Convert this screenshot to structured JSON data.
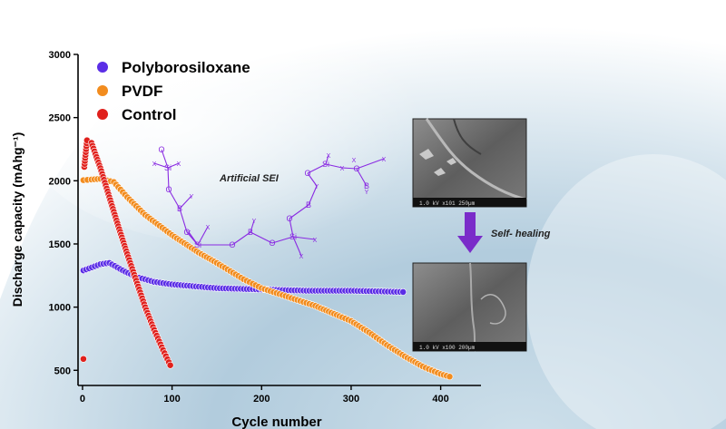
{
  "colors": {
    "polyborosiloxane": "#5b2ee6",
    "pvdf": "#f28c1e",
    "control": "#e0201c",
    "chem": "#8a2be2",
    "arrow": "#7a2cc9"
  },
  "labels": {
    "artificial_sei": "Artificial SEI",
    "self_healing": "Self- healing",
    "sem_top_footer": "1.0 kV  x101  250µm",
    "sem_bottom_footer": "1.0 kV  x100  200µm"
  },
  "chem_atoms": [
    "O",
    "Si",
    "X",
    "X",
    "O",
    "B",
    "Y",
    "O",
    "Si",
    "X",
    "X",
    "O",
    "B",
    "Y",
    "O",
    "Si",
    "X",
    "X",
    "O",
    "B",
    "Y",
    "O",
    "Si",
    "X",
    "X",
    "O",
    "B",
    "Y",
    "X",
    "X"
  ],
  "chart_data": {
    "type": "scatter",
    "title": "",
    "xlabel": "Cycle number",
    "ylabel": "Discharge capacity (mAhg⁻¹)",
    "xlim": [
      -5,
      445
    ],
    "ylim": [
      380,
      3000
    ],
    "xticks": [
      0,
      100,
      200,
      300,
      400
    ],
    "yticks": [
      500,
      1000,
      1500,
      2000,
      2500,
      3000
    ],
    "legend_position": "top-left",
    "series": [
      {
        "name": "Polyborosiloxane",
        "key": "polyborosiloxane",
        "points": [
          [
            1,
            1290
          ],
          [
            20,
            1340
          ],
          [
            30,
            1350
          ],
          [
            45,
            1290
          ],
          [
            60,
            1240
          ],
          [
            80,
            1200
          ],
          [
            100,
            1180
          ],
          [
            150,
            1150
          ],
          [
            200,
            1140
          ],
          [
            250,
            1130
          ],
          [
            300,
            1130
          ],
          [
            358,
            1120
          ]
        ]
      },
      {
        "name": "PVDF",
        "key": "pvdf",
        "points": [
          [
            1,
            2005
          ],
          [
            10,
            2010
          ],
          [
            20,
            2015
          ],
          [
            35,
            1990
          ],
          [
            50,
            1870
          ],
          [
            70,
            1730
          ],
          [
            100,
            1570
          ],
          [
            130,
            1430
          ],
          [
            150,
            1350
          ],
          [
            180,
            1220
          ],
          [
            200,
            1150
          ],
          [
            230,
            1080
          ],
          [
            260,
            1010
          ],
          [
            290,
            920
          ],
          [
            300,
            890
          ],
          [
            320,
            800
          ],
          [
            340,
            700
          ],
          [
            360,
            610
          ],
          [
            380,
            530
          ],
          [
            400,
            470
          ],
          [
            410,
            450
          ]
        ]
      },
      {
        "name": "Control",
        "key": "control",
        "points": [
          [
            1,
            590
          ],
          [
            2,
            2110
          ],
          [
            5,
            2320
          ],
          [
            10,
            2300
          ],
          [
            20,
            2100
          ],
          [
            30,
            1870
          ],
          [
            40,
            1640
          ],
          [
            50,
            1420
          ],
          [
            60,
            1210
          ],
          [
            70,
            1000
          ],
          [
            80,
            820
          ],
          [
            90,
            660
          ],
          [
            98,
            540
          ]
        ]
      }
    ]
  }
}
